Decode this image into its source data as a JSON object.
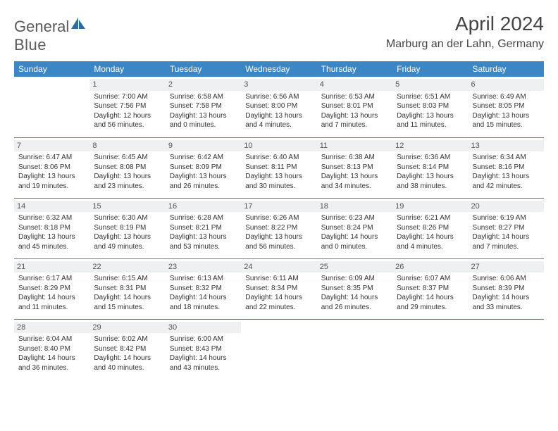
{
  "logo": {
    "word1": "General",
    "word2": "Blue"
  },
  "title": "April 2024",
  "location": "Marburg an der Lahn, Germany",
  "weekdays": [
    "Sunday",
    "Monday",
    "Tuesday",
    "Wednesday",
    "Thursday",
    "Friday",
    "Saturday"
  ],
  "colors": {
    "header_bg": "#3b86c5",
    "header_fg": "#ffffff",
    "daynum_bg": "#eef0f2",
    "rule": "#3b86c5"
  },
  "weeks": [
    [
      null,
      {
        "n": "1",
        "sr": "7:00 AM",
        "ss": "7:56 PM",
        "dl": "12 hours and 56 minutes."
      },
      {
        "n": "2",
        "sr": "6:58 AM",
        "ss": "7:58 PM",
        "dl": "13 hours and 0 minutes."
      },
      {
        "n": "3",
        "sr": "6:56 AM",
        "ss": "8:00 PM",
        "dl": "13 hours and 4 minutes."
      },
      {
        "n": "4",
        "sr": "6:53 AM",
        "ss": "8:01 PM",
        "dl": "13 hours and 7 minutes."
      },
      {
        "n": "5",
        "sr": "6:51 AM",
        "ss": "8:03 PM",
        "dl": "13 hours and 11 minutes."
      },
      {
        "n": "6",
        "sr": "6:49 AM",
        "ss": "8:05 PM",
        "dl": "13 hours and 15 minutes."
      }
    ],
    [
      {
        "n": "7",
        "sr": "6:47 AM",
        "ss": "8:06 PM",
        "dl": "13 hours and 19 minutes."
      },
      {
        "n": "8",
        "sr": "6:45 AM",
        "ss": "8:08 PM",
        "dl": "13 hours and 23 minutes."
      },
      {
        "n": "9",
        "sr": "6:42 AM",
        "ss": "8:09 PM",
        "dl": "13 hours and 26 minutes."
      },
      {
        "n": "10",
        "sr": "6:40 AM",
        "ss": "8:11 PM",
        "dl": "13 hours and 30 minutes."
      },
      {
        "n": "11",
        "sr": "6:38 AM",
        "ss": "8:13 PM",
        "dl": "13 hours and 34 minutes."
      },
      {
        "n": "12",
        "sr": "6:36 AM",
        "ss": "8:14 PM",
        "dl": "13 hours and 38 minutes."
      },
      {
        "n": "13",
        "sr": "6:34 AM",
        "ss": "8:16 PM",
        "dl": "13 hours and 42 minutes."
      }
    ],
    [
      {
        "n": "14",
        "sr": "6:32 AM",
        "ss": "8:18 PM",
        "dl": "13 hours and 45 minutes."
      },
      {
        "n": "15",
        "sr": "6:30 AM",
        "ss": "8:19 PM",
        "dl": "13 hours and 49 minutes."
      },
      {
        "n": "16",
        "sr": "6:28 AM",
        "ss": "8:21 PM",
        "dl": "13 hours and 53 minutes."
      },
      {
        "n": "17",
        "sr": "6:26 AM",
        "ss": "8:22 PM",
        "dl": "13 hours and 56 minutes."
      },
      {
        "n": "18",
        "sr": "6:23 AM",
        "ss": "8:24 PM",
        "dl": "14 hours and 0 minutes."
      },
      {
        "n": "19",
        "sr": "6:21 AM",
        "ss": "8:26 PM",
        "dl": "14 hours and 4 minutes."
      },
      {
        "n": "20",
        "sr": "6:19 AM",
        "ss": "8:27 PM",
        "dl": "14 hours and 7 minutes."
      }
    ],
    [
      {
        "n": "21",
        "sr": "6:17 AM",
        "ss": "8:29 PM",
        "dl": "14 hours and 11 minutes."
      },
      {
        "n": "22",
        "sr": "6:15 AM",
        "ss": "8:31 PM",
        "dl": "14 hours and 15 minutes."
      },
      {
        "n": "23",
        "sr": "6:13 AM",
        "ss": "8:32 PM",
        "dl": "14 hours and 18 minutes."
      },
      {
        "n": "24",
        "sr": "6:11 AM",
        "ss": "8:34 PM",
        "dl": "14 hours and 22 minutes."
      },
      {
        "n": "25",
        "sr": "6:09 AM",
        "ss": "8:35 PM",
        "dl": "14 hours and 26 minutes."
      },
      {
        "n": "26",
        "sr": "6:07 AM",
        "ss": "8:37 PM",
        "dl": "14 hours and 29 minutes."
      },
      {
        "n": "27",
        "sr": "6:06 AM",
        "ss": "8:39 PM",
        "dl": "14 hours and 33 minutes."
      }
    ],
    [
      {
        "n": "28",
        "sr": "6:04 AM",
        "ss": "8:40 PM",
        "dl": "14 hours and 36 minutes."
      },
      {
        "n": "29",
        "sr": "6:02 AM",
        "ss": "8:42 PM",
        "dl": "14 hours and 40 minutes."
      },
      {
        "n": "30",
        "sr": "6:00 AM",
        "ss": "8:43 PM",
        "dl": "14 hours and 43 minutes."
      },
      null,
      null,
      null,
      null
    ]
  ],
  "labels": {
    "sunrise_prefix": "Sunrise: ",
    "sunset_prefix": "Sunset: ",
    "daylight_prefix": "Daylight: "
  }
}
